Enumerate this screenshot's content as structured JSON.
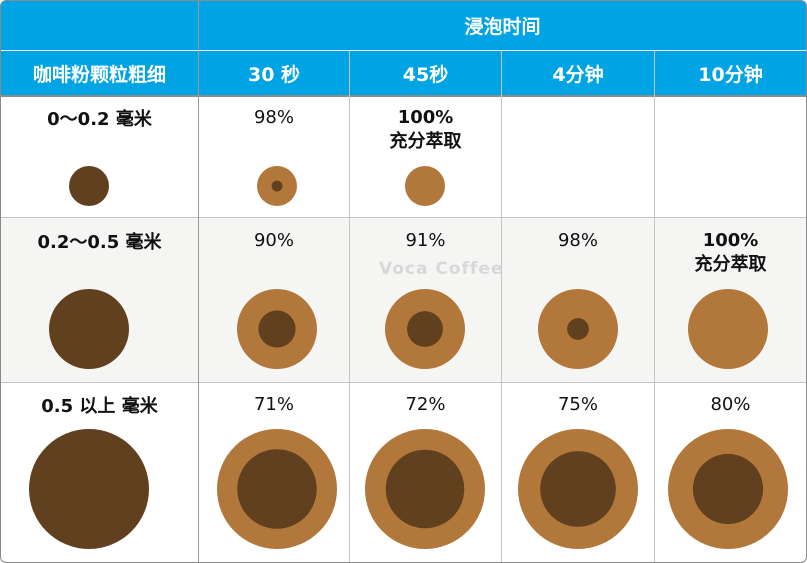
{
  "chart_data": {
    "type": "table",
    "header": {
      "group_title": "浸泡时间",
      "row_header": "咖啡粉颗粒粗细",
      "columns": [
        "30 秒",
        "45秒",
        "4分钟",
        "10分钟"
      ]
    },
    "rows": [
      {
        "label": "0～0.2 毫米",
        "cells": [
          {
            "text": "98%",
            "extraction": 98
          },
          {
            "text": "100%",
            "note": "充分萃取",
            "extraction": 100
          },
          null,
          null
        ]
      },
      {
        "label": "0.2～0.5 毫米",
        "cells": [
          {
            "text": "90%",
            "extraction": 90
          },
          {
            "text": "91%",
            "extraction": 91
          },
          {
            "text": "98%",
            "extraction": 98
          },
          {
            "text": "100%",
            "note": "充分萃取",
            "extraction": 100
          }
        ]
      },
      {
        "label": "0.5 以上 毫米",
        "cells": [
          {
            "text": "71%",
            "extraction": 71
          },
          {
            "text": "72%",
            "extraction": 72
          },
          {
            "text": "75%",
            "extraction": 75
          },
          {
            "text": "80%",
            "extraction": 80
          }
        ]
      }
    ]
  },
  "watermark": "Voca Coffee",
  "colors": {
    "header": "#00a3e3",
    "ground_coffee": "#61401f",
    "extracted": "#b2773b",
    "shaded_row": "#f5f5f3"
  }
}
